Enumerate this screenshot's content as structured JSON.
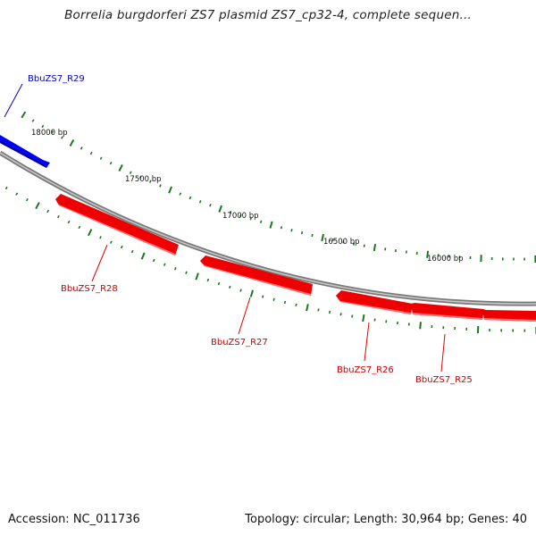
{
  "title": "Borrelia burgdorferi ZS7 plasmid ZS7_cp32-4, complete sequen...",
  "footer": {
    "accession": "Accession: NC_011736",
    "summary": "Topology: circular; Length: 30,964 bp; Genes: 40"
  },
  "colors": {
    "reverse_strand": "#ff0000",
    "forward_strand": "#0000ff",
    "backbone": "#888888",
    "ticks": "#1a7a1a"
  },
  "scale_labels": [
    "18000 bp",
    "17500 bp",
    "17000 bp",
    "16500 bp",
    "16000 bp"
  ],
  "genes": [
    {
      "name": "BbuZS7_R29",
      "strand": "forward"
    },
    {
      "name": "BbuZS7_R28",
      "strand": "reverse"
    },
    {
      "name": "BbuZS7_R27",
      "strand": "reverse"
    },
    {
      "name": "BbuZS7_R26",
      "strand": "reverse"
    },
    {
      "name": "BbuZS7_R25",
      "strand": "reverse"
    }
  ]
}
